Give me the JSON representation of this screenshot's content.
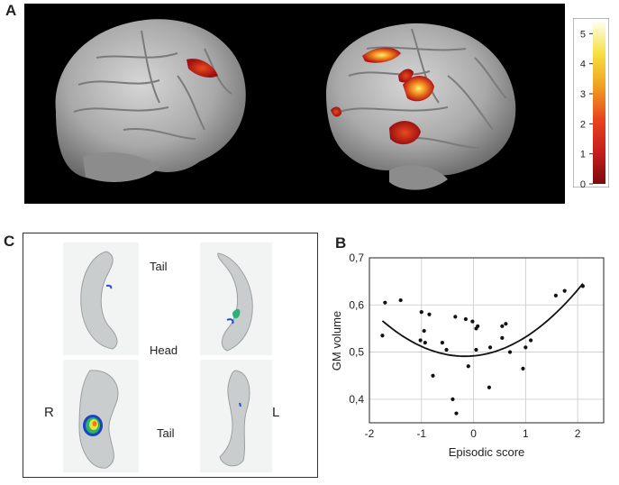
{
  "panels": {
    "a": {
      "letter": "A"
    },
    "b": {
      "letter": "B"
    },
    "c": {
      "letter": "C"
    }
  },
  "colorbar": {
    "ticks": [
      "5",
      "4",
      "3",
      "2",
      "1",
      "0"
    ],
    "tick_values": [
      5,
      4,
      3,
      2,
      1,
      0
    ],
    "max": 5.4,
    "colors": [
      "#7a0c0c",
      "#c81e1e",
      "#e8461e",
      "#f0a020",
      "#f5e040",
      "#ffffee"
    ]
  },
  "hippocampus": {
    "label_tail_top": "Tail",
    "label_head": "Head",
    "label_tail_bottom": "Tail",
    "label_right": "R",
    "label_left": "L"
  },
  "chart_data": {
    "type": "scatter",
    "xlabel": "Episodic score",
    "ylabel": "GM volume",
    "xlim": [
      -2,
      2.5
    ],
    "ylim": [
      0.35,
      0.7
    ],
    "xticks": [
      -2,
      -1,
      0,
      1,
      2
    ],
    "xtick_labels": [
      "-2",
      "-1",
      "0",
      "1",
      "2"
    ],
    "yticks": [
      0.4,
      0.5,
      0.6,
      0.7
    ],
    "ytick_labels": [
      "0,4",
      "0,5",
      "0,6",
      "0,7"
    ],
    "grid": true,
    "points": [
      [
        -1.75,
        0.535
      ],
      [
        -1.7,
        0.605
      ],
      [
        -1.4,
        0.61
      ],
      [
        -1.0,
        0.585
      ],
      [
        -0.95,
        0.545
      ],
      [
        -0.93,
        0.52
      ],
      [
        -1.02,
        0.525
      ],
      [
        -0.85,
        0.58
      ],
      [
        -0.78,
        0.45
      ],
      [
        -0.6,
        0.52
      ],
      [
        -0.52,
        0.505
      ],
      [
        -0.4,
        0.4
      ],
      [
        -0.33,
        0.37
      ],
      [
        -0.35,
        0.575
      ],
      [
        -0.15,
        0.57
      ],
      [
        -0.1,
        0.47
      ],
      [
        -0.02,
        0.565
      ],
      [
        0.05,
        0.55
      ],
      [
        0.05,
        0.505
      ],
      [
        0.08,
        0.555
      ],
      [
        0.3,
        0.425
      ],
      [
        0.32,
        0.51
      ],
      [
        0.55,
        0.555
      ],
      [
        0.55,
        0.53
      ],
      [
        0.62,
        0.56
      ],
      [
        0.7,
        0.5
      ],
      [
        0.95,
        0.465
      ],
      [
        1.0,
        0.51
      ],
      [
        1.1,
        0.525
      ],
      [
        1.58,
        0.62
      ],
      [
        1.75,
        0.63
      ],
      [
        2.1,
        0.64
      ]
    ],
    "fit": {
      "type": "quadratic",
      "a": 0.03,
      "b": 0.01,
      "c": 0.492,
      "x_range": [
        -1.75,
        2.1
      ]
    }
  }
}
